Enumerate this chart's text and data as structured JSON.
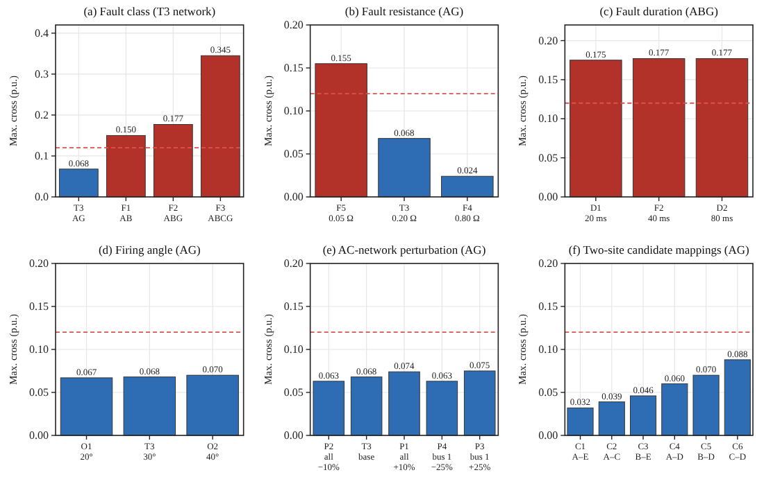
{
  "chart_data": [
    {
      "type": "bar",
      "title": "(a) Fault class (T3 network)",
      "ylabel": "Max. cross (p.u.)",
      "categories": [
        "T3\nAG",
        "F1\nAB",
        "F2\nABG",
        "F3\nABCG"
      ],
      "values": [
        0.068,
        0.15,
        0.177,
        0.345
      ],
      "colors": [
        "#2e6db4",
        "#b23229",
        "#b23229",
        "#b23229"
      ],
      "value_labels": [
        "0.068",
        "0.150",
        "0.177",
        "0.345"
      ],
      "ylim": [
        0,
        0.42
      ],
      "yticks": [
        {
          "value": 0,
          "label": "0.0"
        },
        {
          "value": 0.1,
          "label": "0.1"
        },
        {
          "value": 0.2,
          "label": "0.2"
        },
        {
          "value": 0.3,
          "label": "0.3"
        },
        {
          "value": 0.4,
          "label": "0.4"
        }
      ],
      "grid": true,
      "ref_lines": [
        {
          "axis": "y",
          "value": 0.12,
          "color": "#d9534f",
          "line_style": "dashed"
        }
      ]
    },
    {
      "type": "bar",
      "title": "(b) Fault resistance (AG)",
      "ylabel": "Max. cross (p.u.)",
      "categories": [
        "F5\n0.05 Ω",
        "T3\n0.20 Ω",
        "F4\n0.80 Ω"
      ],
      "values": [
        0.155,
        0.068,
        0.024
      ],
      "colors": [
        "#b23229",
        "#2e6db4",
        "#2e6db4"
      ],
      "value_labels": [
        "0.155",
        "0.068",
        "0.024"
      ],
      "ylim": [
        0,
        0.2
      ],
      "yticks": [
        {
          "value": 0,
          "label": "0.00"
        },
        {
          "value": 0.05,
          "label": "0.05"
        },
        {
          "value": 0.1,
          "label": "0.10"
        },
        {
          "value": 0.15,
          "label": "0.15"
        },
        {
          "value": 0.2,
          "label": "0.20"
        }
      ],
      "grid": true,
      "ref_lines": [
        {
          "axis": "y",
          "value": 0.12,
          "color": "#d9534f",
          "line_style": "dashed"
        }
      ]
    },
    {
      "type": "bar",
      "title": "(c) Fault duration (ABG)",
      "ylabel": "Max. cross (p.u.)",
      "categories": [
        "D1\n20 ms",
        "F2\n40 ms",
        "D2\n80 ms"
      ],
      "values": [
        0.175,
        0.177,
        0.177
      ],
      "colors": [
        "#b23229",
        "#b23229",
        "#b23229"
      ],
      "value_labels": [
        "0.175",
        "0.177",
        "0.177"
      ],
      "ylim": [
        0,
        0.22
      ],
      "yticks": [
        {
          "value": 0,
          "label": "0.00"
        },
        {
          "value": 0.05,
          "label": "0.05"
        },
        {
          "value": 0.1,
          "label": "0.10"
        },
        {
          "value": 0.15,
          "label": "0.15"
        },
        {
          "value": 0.2,
          "label": "0.20"
        }
      ],
      "grid": true,
      "ref_lines": [
        {
          "axis": "y",
          "value": 0.12,
          "color": "#d9534f",
          "line_style": "dashed"
        }
      ]
    },
    {
      "type": "bar",
      "title": "(d) Firing angle (AG)",
      "ylabel": "Max. cross (p.u.)",
      "categories": [
        "O1\n20°",
        "T3\n30°",
        "O2\n40°"
      ],
      "values": [
        0.067,
        0.068,
        0.07
      ],
      "colors": [
        "#2e6db4",
        "#2e6db4",
        "#2e6db4"
      ],
      "value_labels": [
        "0.067",
        "0.068",
        "0.070"
      ],
      "ylim": [
        0,
        0.2
      ],
      "yticks": [
        {
          "value": 0,
          "label": "0.00"
        },
        {
          "value": 0.05,
          "label": "0.05"
        },
        {
          "value": 0.1,
          "label": "0.10"
        },
        {
          "value": 0.15,
          "label": "0.15"
        },
        {
          "value": 0.2,
          "label": "0.20"
        }
      ],
      "grid": true,
      "ref_lines": [
        {
          "axis": "y",
          "value": 0.12,
          "color": "#d9534f",
          "line_style": "dashed"
        }
      ]
    },
    {
      "type": "bar",
      "title": "(e) AC-network perturbation (AG)",
      "ylabel": "Max. cross (p.u.)",
      "categories": [
        "P2\nall\n−10%",
        "T3\nbase",
        "P1\nall\n+10%",
        "P4\nbus 1\n−25%",
        "P3\nbus 1\n+25%"
      ],
      "values": [
        0.063,
        0.068,
        0.074,
        0.063,
        0.075
      ],
      "colors": [
        "#2e6db4",
        "#2e6db4",
        "#2e6db4",
        "#2e6db4",
        "#2e6db4"
      ],
      "value_labels": [
        "0.063",
        "0.068",
        "0.074",
        "0.063",
        "0.075"
      ],
      "ylim": [
        0,
        0.2
      ],
      "yticks": [
        {
          "value": 0,
          "label": "0.00"
        },
        {
          "value": 0.05,
          "label": "0.05"
        },
        {
          "value": 0.1,
          "label": "0.10"
        },
        {
          "value": 0.15,
          "label": "0.15"
        },
        {
          "value": 0.2,
          "label": "0.20"
        }
      ],
      "grid": true,
      "ref_lines": [
        {
          "axis": "y",
          "value": 0.12,
          "color": "#d9534f",
          "line_style": "dashed"
        }
      ]
    },
    {
      "type": "bar",
      "title": "(f) Two-site candidate mappings (AG)",
      "ylabel": "Max. cross (p.u.)",
      "categories": [
        "C1\nA–E",
        "C2\nA–C",
        "C3\nB–E",
        "C4\nA–D",
        "C5\nB–D",
        "C6\nC–D"
      ],
      "values": [
        0.032,
        0.039,
        0.046,
        0.06,
        0.07,
        0.088
      ],
      "colors": [
        "#2e6db4",
        "#2e6db4",
        "#2e6db4",
        "#2e6db4",
        "#2e6db4",
        "#2e6db4"
      ],
      "value_labels": [
        "0.032",
        "0.039",
        "0.046",
        "0.060",
        "0.070",
        "0.088"
      ],
      "ylim": [
        0,
        0.2
      ],
      "yticks": [
        {
          "value": 0,
          "label": "0.00"
        },
        {
          "value": 0.05,
          "label": "0.05"
        },
        {
          "value": 0.1,
          "label": "0.10"
        },
        {
          "value": 0.15,
          "label": "0.15"
        },
        {
          "value": 0.2,
          "label": "0.20"
        }
      ],
      "grid": true,
      "ref_lines": [
        {
          "axis": "y",
          "value": 0.12,
          "color": "#d9534f",
          "line_style": "dashed"
        }
      ]
    }
  ]
}
